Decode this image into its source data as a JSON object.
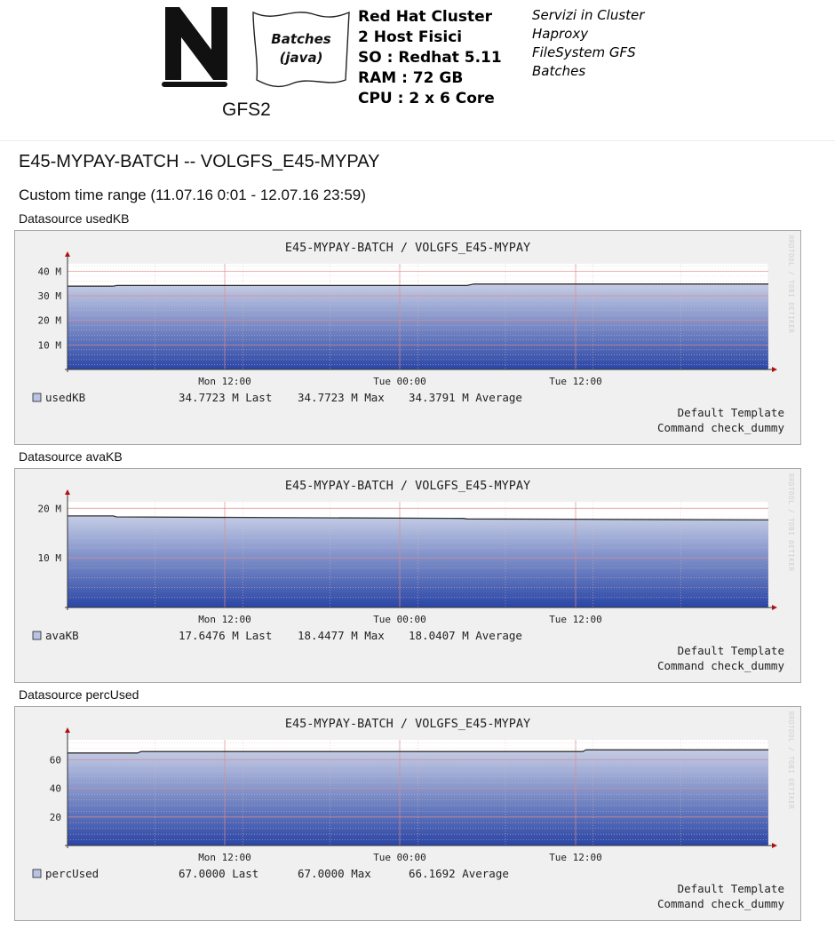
{
  "header": {
    "logo_caption": "GFS2",
    "scroll_line1": "Batches",
    "scroll_line2": "(java)",
    "specs": [
      "Red Hat Cluster",
      "2 Host Fisici",
      "SO : Redhat 5.11",
      "RAM : 72 GB",
      "CPU : 2 x 6 Core"
    ],
    "services": [
      "Servizi in Cluster",
      "Haproxy",
      "FileSystem GFS",
      "Batches"
    ]
  },
  "page": {
    "title": "E45-MYPAY-BATCH -- VOLGFS_E45-MYPAY",
    "time_range": "Custom time range (11.07.16 0:01 - 12.07.16 23:59)"
  },
  "colors": {
    "canvas_bg": "#f0f0f0",
    "plot_top": "#c4cde6",
    "plot_bottom": "#2a46a6",
    "grid": "#e08a8a",
    "axis": "#333333",
    "arrow": "#b01010",
    "series_line": "#333333"
  },
  "chart_data": [
    {
      "type": "area",
      "datasource_label": "Datasource usedKB",
      "title": "E45-MYPAY-BATCH / VOLGFS_E45-MYPAY",
      "watermark": "RRDTOOL / TOBI OETIKER",
      "x_tick_labels": [
        "Mon 12:00",
        "Tue 00:00",
        "Tue 12:00"
      ],
      "y_ticks": [
        10,
        20,
        30,
        40
      ],
      "y_tick_labels": [
        "10 M",
        "20 M",
        "30 M",
        "40 M"
      ],
      "ylim": [
        0,
        43
      ],
      "series": [
        {
          "name": "usedKB",
          "x": [
            0,
            0.065,
            0.07,
            0.57,
            0.58,
            1.0
          ],
          "values": [
            33.9,
            33.9,
            34.2,
            34.2,
            34.7723,
            34.7723
          ]
        }
      ],
      "legend": {
        "name": "usedKB",
        "last": "34.7723 M Last",
        "max": "34.7723 M Max",
        "avg": "34.3791 M Average"
      },
      "template": "Default Template",
      "command": "Command check_dummy"
    },
    {
      "type": "area",
      "datasource_label": "Datasource avaKB",
      "title": "E45-MYPAY-BATCH / VOLGFS_E45-MYPAY",
      "watermark": "RRDTOOL / TOBI OETIKER",
      "x_tick_labels": [
        "Mon 12:00",
        "Tue 00:00",
        "Tue 12:00"
      ],
      "y_ticks": [
        10,
        20
      ],
      "y_tick_labels": [
        "10 M",
        "20 M"
      ],
      "ylim": [
        0,
        21.3
      ],
      "series": [
        {
          "name": "avaKB",
          "x": [
            0,
            0.065,
            0.07,
            0.565,
            0.57,
            1.0
          ],
          "values": [
            18.4477,
            18.4477,
            18.25,
            17.95,
            17.85,
            17.6476
          ]
        }
      ],
      "legend": {
        "name": "avaKB",
        "last": "17.6476 M Last",
        "max": "18.4477 M Max",
        "avg": "18.0407 M Average"
      },
      "template": "Default Template",
      "command": "Command check_dummy"
    },
    {
      "type": "area",
      "datasource_label": "Datasource percUsed",
      "title": "E45-MYPAY-BATCH / VOLGFS_E45-MYPAY",
      "watermark": "RRDTOOL / TOBI OETIKER",
      "x_tick_labels": [
        "Mon 12:00",
        "Tue 00:00",
        "Tue 12:00"
      ],
      "y_ticks": [
        20,
        40,
        60
      ],
      "y_tick_labels": [
        "20",
        "40",
        "60"
      ],
      "ylim": [
        0,
        74
      ],
      "series": [
        {
          "name": "percUsed",
          "x": [
            0,
            0.1,
            0.105,
            0.735,
            0.74,
            1.0
          ],
          "values": [
            64.8,
            64.8,
            65.8,
            65.8,
            67.0,
            67.0
          ]
        }
      ],
      "legend": {
        "name": "percUsed",
        "last": "67.0000   Last",
        "max": "67.0000   Max",
        "avg": "66.1692   Average"
      },
      "template": "Default Template",
      "command": "Command check_dummy"
    }
  ]
}
